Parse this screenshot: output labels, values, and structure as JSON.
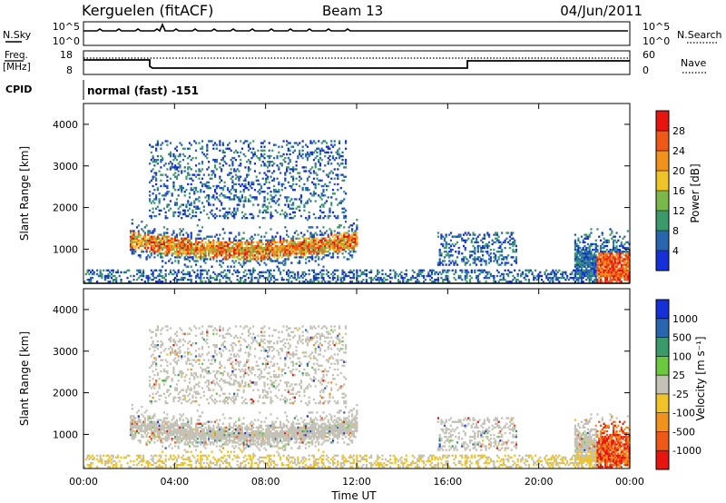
{
  "header": {
    "station": "Kerguelen (fitACF)",
    "beam": "Beam 13",
    "date": "04/Jun/2011"
  },
  "panels": {
    "nsky_label": "N.Sky",
    "nsearch_label": "N.Search",
    "nsky_ticks": [
      "10^5",
      "10^0"
    ],
    "nsearch_ticks": [
      "10^5",
      "10^0"
    ],
    "freq_label_1": "Freq.",
    "freq_label_2": "[MHz]",
    "freq_ticks": [
      "18",
      "8"
    ],
    "nave_ticks": [
      "60",
      "0"
    ],
    "nave_label": "Nave",
    "cpid_label": "CPID",
    "cpid_text": "normal (fast) -151"
  },
  "colorbars": {
    "power": {
      "label": "Power [dB]",
      "ticks": [
        "28",
        "24",
        "20",
        "16",
        "12",
        "8",
        "4"
      ],
      "colors": [
        "#1530d8",
        "#2a66b0",
        "#3b9a6a",
        "#7ab84a",
        "#f0c428",
        "#f0921c",
        "#f05818",
        "#e81410"
      ]
    },
    "velocity": {
      "label": "Velocity [m s⁻¹]",
      "ticks": [
        "1000",
        "500",
        "100",
        "25",
        "-25",
        "-100",
        "-500",
        "-1000"
      ],
      "colors": [
        "#e81410",
        "#f05818",
        "#f0921c",
        "#f0c428",
        "#c4c2b6",
        "#6cc83c",
        "#3b9a6a",
        "#2a66b0",
        "#1530d8"
      ]
    }
  },
  "chart_data": [
    {
      "type": "heatmap",
      "title": "",
      "ylabel": "Slant Range [km]",
      "xlabel": "",
      "ylim": [
        180,
        4500
      ],
      "xlim": [
        "00:00",
        "24:00"
      ],
      "yticks": [
        "1000",
        "2000",
        "3000",
        "4000"
      ],
      "xticks": [
        "00:00",
        "04:00",
        "08:00",
        "12:00",
        "16:00",
        "20:00",
        "00:00"
      ],
      "quantity": "Power [dB]",
      "colorbar_range": [
        0,
        32
      ]
    },
    {
      "type": "heatmap",
      "title": "",
      "ylabel": "Slant Range [km]",
      "xlabel": "Time UT",
      "ylim": [
        180,
        4500
      ],
      "xlim": [
        "00:00",
        "24:00"
      ],
      "yticks": [
        "1000",
        "2000",
        "3000",
        "4000"
      ],
      "xticks": [
        "00:00",
        "04:00",
        "08:00",
        "12:00",
        "16:00",
        "20:00",
        "00:00"
      ],
      "quantity": "Velocity [m s-1]",
      "colorbar_range": [
        -1000,
        1000
      ]
    }
  ]
}
